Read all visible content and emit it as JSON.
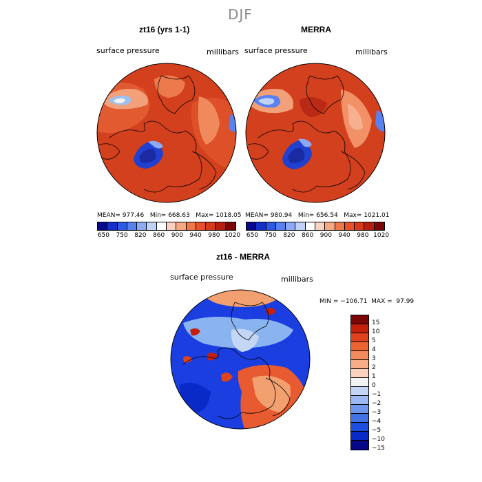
{
  "figure": {
    "season": "DJF"
  },
  "panel_left": {
    "title": "zt16 (yrs 1-1)",
    "field_label": "surface pressure",
    "units_label": "millibars",
    "stats": "MEAN= 977.46   Min= 668.63   Max= 1018.05"
  },
  "panel_right": {
    "title": "MERRA",
    "field_label": "surface pressure",
    "units_label": "millibars",
    "stats": "MEAN= 980.94   Min= 656.54   Max= 1021.01"
  },
  "panel_diff": {
    "title": "zt16 - MERRA",
    "field_label": "surface pressure",
    "units_label": "millibars",
    "minmax": "MIN = −106.71  MAX =  97.99"
  },
  "colorbar_abs": {
    "tick_labels": [
      "650",
      "750",
      "820",
      "860",
      "900",
      "940",
      "980",
      "1020"
    ],
    "colors": [
      "#08088a",
      "#1530c8",
      "#2a5ae6",
      "#5a82ee",
      "#8eaaf4",
      "#c0d2f8",
      "#ffffff",
      "#fbd2c0",
      "#f6a880",
      "#f07848",
      "#e8502a",
      "#d73a1a",
      "#b61e10",
      "#7a0606"
    ]
  },
  "colorbar_diff": {
    "tick_labels": [
      "15",
      "10",
      "5",
      "4",
      "3",
      "2",
      "1",
      "0",
      "−1",
      "−2",
      "−3",
      "−4",
      "−5",
      "−10",
      "−15"
    ],
    "colors": [
      "#7a0606",
      "#c3200e",
      "#e0421f",
      "#ec6432",
      "#f28a5e",
      "#f6ad88",
      "#fbd2c0",
      "#f3f3f3",
      "#c4d6f6",
      "#9bb8f2",
      "#6f96ec",
      "#4272e6",
      "#1e4ee0",
      "#0a2ac8",
      "#07078a"
    ]
  },
  "map_colors": {
    "land_high": "#d2401e",
    "ocean_high": "#e25a30",
    "deep_red": "#b82a16",
    "mid_orange": "#ee8a5e",
    "light_orange": "#f6b090",
    "greenland_low": "#2040d0",
    "light_blue": "#9cc0f0",
    "diff_blue": "#1a3ee0",
    "diff_light_blue": "#8ab4f0",
    "diff_red": "#e85a30",
    "diff_orange": "#f2a070"
  }
}
